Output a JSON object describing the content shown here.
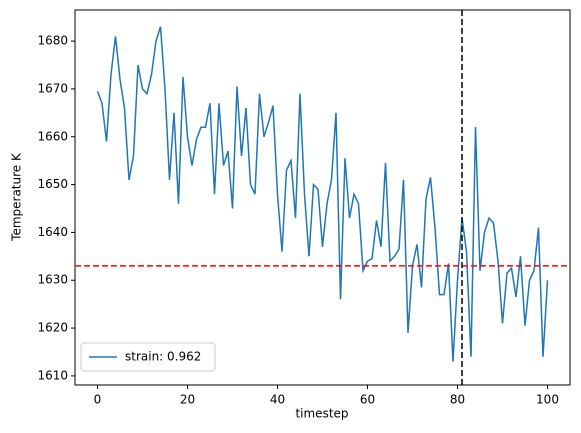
{
  "chart_data": {
    "type": "line",
    "xlabel": "timestep",
    "ylabel": "Temperature K",
    "x": [
      0,
      1,
      2,
      3,
      4,
      5,
      6,
      7,
      8,
      9,
      10,
      11,
      12,
      13,
      14,
      15,
      16,
      17,
      18,
      19,
      20,
      21,
      22,
      23,
      24,
      25,
      26,
      27,
      28,
      29,
      30,
      31,
      32,
      33,
      34,
      35,
      36,
      37,
      38,
      39,
      40,
      41,
      42,
      43,
      44,
      45,
      46,
      47,
      48,
      49,
      50,
      51,
      52,
      53,
      54,
      55,
      56,
      57,
      58,
      59,
      60,
      61,
      62,
      63,
      64,
      65,
      66,
      67,
      68,
      69,
      70,
      71,
      72,
      73,
      74,
      75,
      76,
      77,
      78,
      79,
      80,
      81,
      82,
      83,
      84,
      85,
      86,
      87,
      88,
      89,
      90,
      91,
      92,
      93,
      94,
      95,
      96,
      97,
      98,
      99,
      100
    ],
    "series": [
      {
        "name": "strain: 0.962",
        "color": "#1f77b4",
        "values": [
          1669.5,
          1667,
          1659,
          1673,
          1681,
          1672,
          1666,
          1651,
          1656,
          1675,
          1670,
          1669,
          1673,
          1680,
          1683,
          1670,
          1651,
          1665,
          1646,
          1672.5,
          1660,
          1654,
          1659.5,
          1662,
          1662,
          1667,
          1648,
          1667,
          1654,
          1657,
          1645,
          1670.5,
          1656,
          1666,
          1650,
          1648,
          1669,
          1660,
          1663,
          1666.5,
          1648,
          1636,
          1653,
          1655,
          1643,
          1669,
          1648,
          1635,
          1650,
          1649,
          1637,
          1646,
          1651,
          1665,
          1626,
          1655.5,
          1643,
          1648,
          1646,
          1632,
          1634,
          1634.5,
          1642.5,
          1637,
          1654.5,
          1634,
          1635,
          1636.5,
          1651,
          1619,
          1633,
          1637.5,
          1628.5,
          1647,
          1651.5,
          1641,
          1627,
          1627,
          1633.5,
          1613,
          1630,
          1643,
          1636,
          1614,
          1662,
          1632,
          1640,
          1643,
          1642,
          1634,
          1621,
          1631.5,
          1632.5,
          1626.5,
          1635,
          1620.5,
          1630,
          1632,
          1641,
          1614,
          1630
        ]
      }
    ],
    "reference_lines": [
      {
        "axis": "y",
        "value": 1633,
        "color": "#ff0000"
      },
      {
        "axis": "x",
        "value": 81,
        "color": "#000000"
      }
    ],
    "xlim": [
      -5,
      105
    ],
    "xticks": [
      0,
      20,
      40,
      60,
      80,
      100
    ],
    "ylim": [
      1608.1,
      1686.5
    ],
    "yticks": [
      1610,
      1620,
      1630,
      1640,
      1650,
      1660,
      1670,
      1680
    ],
    "legend": "lower left"
  }
}
